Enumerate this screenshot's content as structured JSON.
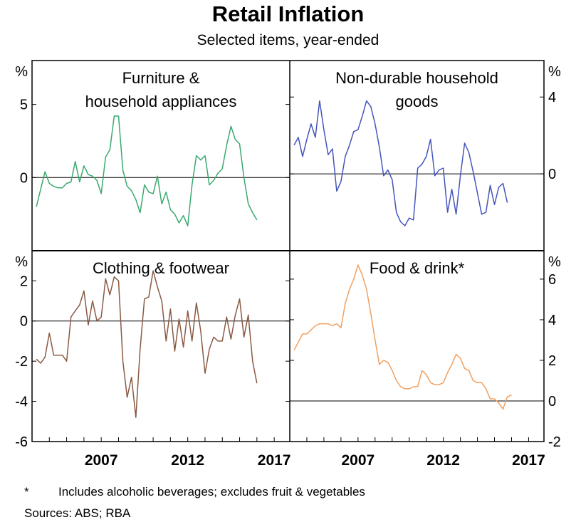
{
  "title": "Retail Inflation",
  "subtitle": "Selected items, year-ended",
  "footnote": {
    "marker": "*",
    "text": "Includes alcoholic beverages; excludes fruit & vegetables"
  },
  "sources": "Sources:   ABS; RBA",
  "chart_data": [
    {
      "type": "line",
      "title_lines": [
        "Furniture &",
        "household appliances"
      ],
      "axis_side": "left",
      "unit": "%",
      "ylim": [
        -5,
        8
      ],
      "yticks": [
        "5",
        "0"
      ],
      "ytick_values": [
        5,
        0
      ],
      "x_start": 2003.25,
      "x_step": 0.25,
      "color": "#3aa96e",
      "values": [
        -2.0,
        -0.8,
        0.4,
        -0.4,
        -0.6,
        -0.7,
        -0.7,
        -0.4,
        -0.3,
        1.1,
        -0.3,
        0.8,
        0.2,
        0.1,
        -0.2,
        -1.1,
        1.4,
        1.9,
        4.2,
        4.2,
        0.5,
        -0.6,
        -0.9,
        -1.5,
        -2.4,
        -0.5,
        -1.0,
        -1.1,
        0.1,
        -1.8,
        -1.0,
        -2.2,
        -2.5,
        -3.1,
        -2.6,
        -3.3,
        -0.5,
        1.5,
        1.2,
        1.5,
        -0.5,
        -0.2,
        0.3,
        0.6,
        2.2,
        3.5,
        2.6,
        2.3,
        0.0,
        -1.8,
        -2.4,
        -2.9
      ]
    },
    {
      "type": "line",
      "title_lines": [
        "Non-durable household",
        "goods"
      ],
      "axis_side": "right",
      "unit": "%",
      "ylim": [
        -4,
        5.9
      ],
      "yticks": [
        "4",
        "0"
      ],
      "ytick_values": [
        4,
        0
      ],
      "x_start": 2003.25,
      "x_step": 0.25,
      "color": "#4455bb",
      "values": [
        1.5,
        1.9,
        0.9,
        1.8,
        2.6,
        1.9,
        3.8,
        2.3,
        1.0,
        1.3,
        -0.9,
        -0.4,
        0.9,
        1.5,
        2.2,
        2.3,
        3.0,
        3.8,
        3.5,
        2.6,
        1.4,
        -0.1,
        0.2,
        -0.3,
        -2.0,
        -2.5,
        -2.7,
        -2.3,
        -2.4,
        0.3,
        0.5,
        0.9,
        1.8,
        -0.1,
        0.2,
        0.3,
        -2.0,
        -0.8,
        -2.1,
        -0.1,
        1.6,
        1.1,
        0.1,
        -1.0,
        -2.1,
        -2.0,
        -0.6,
        -1.6,
        -0.7,
        -0.5,
        -1.5
      ]
    },
    {
      "type": "line",
      "title_lines": [
        "Clothing & footwear"
      ],
      "axis_side": "left",
      "unit": "%",
      "ylim": [
        -6,
        3.5
      ],
      "yticks": [
        "2",
        "0",
        "-2",
        "-4",
        "-6"
      ],
      "ytick_values": [
        2,
        0,
        -2,
        -4,
        -6
      ],
      "x_start": 2003.25,
      "x_step": 0.25,
      "color": "#8a5a44",
      "values": [
        -1.9,
        -2.1,
        -1.8,
        -0.6,
        -1.7,
        -1.7,
        -1.7,
        -2.0,
        0.2,
        0.5,
        0.8,
        1.5,
        -0.2,
        1.0,
        0.0,
        0.2,
        2.1,
        1.3,
        2.2,
        2.0,
        -2.0,
        -3.8,
        -2.8,
        -4.8,
        -1.4,
        1.1,
        1.2,
        2.5,
        1.7,
        1.0,
        -1.0,
        0.6,
        -1.5,
        0.1,
        -1.3,
        0.5,
        -1.0,
        0.9,
        -0.5,
        -2.6,
        -1.4,
        -0.8,
        -1.0,
        -1.0,
        0.2,
        -0.9,
        0.3,
        1.1,
        -0.8,
        0.3,
        -2.0,
        -3.1
      ]
    },
    {
      "type": "line",
      "title_lines": [
        "Food & drink*"
      ],
      "axis_side": "right",
      "unit": "%",
      "ylim": [
        -2,
        7.4
      ],
      "yticks": [
        "6",
        "4",
        "2",
        "0",
        "-2"
      ],
      "ytick_values": [
        6,
        4,
        2,
        0,
        -2
      ],
      "x_start": 2003.25,
      "x_step": 0.25,
      "color": "#f0a060",
      "values": [
        2.5,
        2.9,
        3.3,
        3.3,
        3.5,
        3.7,
        3.8,
        3.8,
        3.8,
        3.7,
        3.8,
        3.6,
        4.8,
        5.5,
        6.0,
        6.7,
        6.2,
        5.5,
        4.3,
        3.0,
        1.8,
        2.0,
        1.9,
        1.5,
        1.0,
        0.7,
        0.6,
        0.6,
        0.7,
        0.7,
        1.5,
        1.3,
        0.9,
        0.8,
        0.8,
        0.9,
        1.4,
        1.8,
        2.3,
        2.1,
        1.6,
        1.5,
        1.0,
        0.9,
        0.9,
        0.6,
        0.1,
        0.1,
        -0.1,
        -0.4,
        0.2,
        0.3
      ]
    }
  ],
  "x_axis": {
    "ticks": [
      2007,
      2012,
      2017
    ],
    "tick_labels": [
      "2007",
      "2012",
      "2017"
    ]
  }
}
